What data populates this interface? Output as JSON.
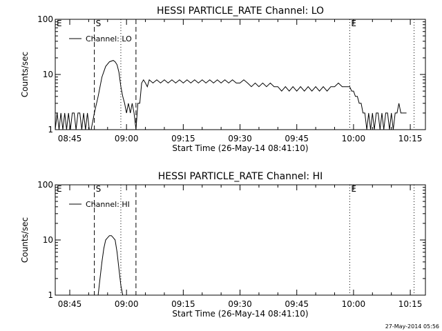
{
  "footer_timestamp": "27-May-2014 05:56",
  "chart_data": [
    {
      "type": "line",
      "title": "HESSI PARTICLE_RATE Channel: LO",
      "xlabel": "Start Time (26-May-14 08:41:10)",
      "ylabel": "Counts/sec",
      "y_scale": "log",
      "ylim": [
        1,
        100
      ],
      "x_ticks": [
        "08:45",
        "09:00",
        "09:15",
        "09:30",
        "09:45",
        "10:00",
        "10:15"
      ],
      "y_ticks": [
        "1",
        "10",
        "100"
      ],
      "legend": {
        "label": "Channel: LO",
        "placement": "top-left"
      },
      "markers": [
        {
          "label": "E",
          "time": "08:41:10",
          "style": "none"
        },
        {
          "label": "S",
          "time": "08:51:30",
          "style": "dashed"
        },
        {
          "label": "",
          "time": "08:58:30",
          "style": "dotted"
        },
        {
          "label": "",
          "time": "09:02:30",
          "style": "dashed"
        },
        {
          "label": "E",
          "time": "09:59:00",
          "style": "dotted"
        },
        {
          "label": "",
          "time": "10:16:00",
          "style": "dotted"
        }
      ],
      "series": [
        {
          "name": "Channel: LO",
          "points": [
            [
              "08:41:10",
              1
            ],
            [
              "08:41:40",
              2
            ],
            [
              "08:42:10",
              1
            ],
            [
              "08:42:40",
              2
            ],
            [
              "08:43:10",
              1
            ],
            [
              "08:43:40",
              2
            ],
            [
              "08:44:10",
              1
            ],
            [
              "08:44:40",
              2
            ],
            [
              "08:45:10",
              1
            ],
            [
              "08:45:40",
              2
            ],
            [
              "08:46:10",
              2
            ],
            [
              "08:46:40",
              1
            ],
            [
              "08:47:10",
              2
            ],
            [
              "08:47:40",
              2
            ],
            [
              "08:48:10",
              1
            ],
            [
              "08:48:40",
              2
            ],
            [
              "08:49:10",
              1
            ],
            [
              "08:49:40",
              2
            ],
            [
              "08:50:10",
              1
            ],
            [
              "08:50:40",
              1
            ],
            [
              "08:51:30",
              2
            ],
            [
              "08:52:30",
              4
            ],
            [
              "08:53:30",
              9
            ],
            [
              "08:54:30",
              14
            ],
            [
              "08:55:30",
              17
            ],
            [
              "08:56:30",
              18
            ],
            [
              "08:57:00",
              17
            ],
            [
              "08:57:30",
              15
            ],
            [
              "08:58:00",
              11
            ],
            [
              "08:58:30",
              6
            ],
            [
              "08:59:00",
              4
            ],
            [
              "08:59:30",
              3
            ],
            [
              "09:00:00",
              2
            ],
            [
              "09:00:30",
              3
            ],
            [
              "09:01:00",
              2
            ],
            [
              "09:01:30",
              3
            ],
            [
              "09:02:00",
              2
            ],
            [
              "09:02:30",
              1
            ],
            [
              "09:03:00",
              3
            ],
            [
              "09:03:30",
              3
            ],
            [
              "09:04:00",
              7
            ],
            [
              "09:04:30",
              8
            ],
            [
              "09:05:00",
              7
            ],
            [
              "09:05:30",
              6
            ],
            [
              "09:06:00",
              8
            ],
            [
              "09:07:00",
              7
            ],
            [
              "09:08:00",
              8
            ],
            [
              "09:09:00",
              7
            ],
            [
              "09:10:00",
              8
            ],
            [
              "09:11:00",
              7
            ],
            [
              "09:12:00",
              8
            ],
            [
              "09:13:00",
              7
            ],
            [
              "09:14:00",
              8
            ],
            [
              "09:15:00",
              7
            ],
            [
              "09:16:00",
              8
            ],
            [
              "09:17:00",
              7
            ],
            [
              "09:18:00",
              8
            ],
            [
              "09:19:00",
              7
            ],
            [
              "09:20:00",
              8
            ],
            [
              "09:21:00",
              7
            ],
            [
              "09:22:00",
              8
            ],
            [
              "09:23:00",
              7
            ],
            [
              "09:24:00",
              8
            ],
            [
              "09:25:00",
              7
            ],
            [
              "09:26:00",
              8
            ],
            [
              "09:27:00",
              7
            ],
            [
              "09:28:00",
              8
            ],
            [
              "09:29:00",
              7
            ],
            [
              "09:30:00",
              7
            ],
            [
              "09:31:00",
              8
            ],
            [
              "09:32:00",
              7
            ],
            [
              "09:33:00",
              6
            ],
            [
              "09:34:00",
              7
            ],
            [
              "09:35:00",
              6
            ],
            [
              "09:36:00",
              7
            ],
            [
              "09:37:00",
              6
            ],
            [
              "09:38:00",
              7
            ],
            [
              "09:39:00",
              6
            ],
            [
              "09:40:00",
              6
            ],
            [
              "09:41:00",
              5
            ],
            [
              "09:42:00",
              6
            ],
            [
              "09:43:00",
              5
            ],
            [
              "09:44:00",
              6
            ],
            [
              "09:45:00",
              5
            ],
            [
              "09:46:00",
              6
            ],
            [
              "09:47:00",
              5
            ],
            [
              "09:48:00",
              6
            ],
            [
              "09:49:00",
              5
            ],
            [
              "09:50:00",
              6
            ],
            [
              "09:51:00",
              5
            ],
            [
              "09:52:00",
              6
            ],
            [
              "09:53:00",
              5
            ],
            [
              "09:54:00",
              6
            ],
            [
              "09:55:00",
              6
            ],
            [
              "09:56:00",
              7
            ],
            [
              "09:57:00",
              6
            ],
            [
              "09:58:00",
              6
            ],
            [
              "09:59:00",
              6
            ],
            [
              "09:59:30",
              5
            ],
            [
              "10:00:00",
              5
            ],
            [
              "10:00:30",
              4
            ],
            [
              "10:01:00",
              4
            ],
            [
              "10:01:30",
              3
            ],
            [
              "10:02:00",
              3
            ],
            [
              "10:02:30",
              2
            ],
            [
              "10:03:00",
              2
            ],
            [
              "10:03:30",
              1
            ],
            [
              "10:04:00",
              2
            ],
            [
              "10:04:30",
              1
            ],
            [
              "10:05:00",
              2
            ],
            [
              "10:05:30",
              1
            ],
            [
              "10:06:00",
              2
            ],
            [
              "10:06:30",
              2
            ],
            [
              "10:07:00",
              1
            ],
            [
              "10:07:30",
              2
            ],
            [
              "10:08:00",
              1
            ],
            [
              "10:08:30",
              2
            ],
            [
              "10:09:00",
              2
            ],
            [
              "10:09:30",
              1
            ],
            [
              "10:10:00",
              2
            ],
            [
              "10:10:30",
              1
            ],
            [
              "10:11:00",
              2
            ],
            [
              "10:11:30",
              2
            ],
            [
              "10:12:00",
              3
            ],
            [
              "10:12:30",
              2
            ],
            [
              "10:13:00",
              2
            ],
            [
              "10:14:00",
              2
            ]
          ]
        }
      ]
    },
    {
      "type": "line",
      "title": "HESSI PARTICLE_RATE Channel: HI",
      "xlabel": "Start Time (26-May-14 08:41:10)",
      "ylabel": "Counts/sec",
      "y_scale": "log",
      "ylim": [
        1,
        100
      ],
      "x_ticks": [
        "08:45",
        "09:00",
        "09:15",
        "09:30",
        "09:45",
        "10:00",
        "10:15"
      ],
      "y_ticks": [
        "1",
        "10",
        "100"
      ],
      "legend": {
        "label": "Channel: HI",
        "placement": "top-left"
      },
      "markers": [
        {
          "label": "E",
          "time": "08:41:10",
          "style": "none"
        },
        {
          "label": "S",
          "time": "08:51:30",
          "style": "dashed"
        },
        {
          "label": "",
          "time": "08:58:30",
          "style": "dotted"
        },
        {
          "label": "",
          "time": "09:02:30",
          "style": "dashed"
        },
        {
          "label": "E",
          "time": "09:59:00",
          "style": "dotted"
        },
        {
          "label": "",
          "time": "10:16:00",
          "style": "dotted"
        }
      ],
      "series": [
        {
          "name": "Channel: HI",
          "points": [
            [
              "08:52:30",
              1
            ],
            [
              "08:53:00",
              2
            ],
            [
              "08:53:30",
              4
            ],
            [
              "08:54:00",
              7
            ],
            [
              "08:54:30",
              10
            ],
            [
              "08:55:00",
              11
            ],
            [
              "08:55:30",
              12
            ],
            [
              "08:56:00",
              12
            ],
            [
              "08:56:30",
              11
            ],
            [
              "08:57:00",
              10
            ],
            [
              "08:57:30",
              6
            ],
            [
              "08:58:00",
              3
            ],
            [
              "08:58:30",
              1.5
            ],
            [
              "08:59:00",
              1
            ]
          ]
        }
      ]
    }
  ]
}
